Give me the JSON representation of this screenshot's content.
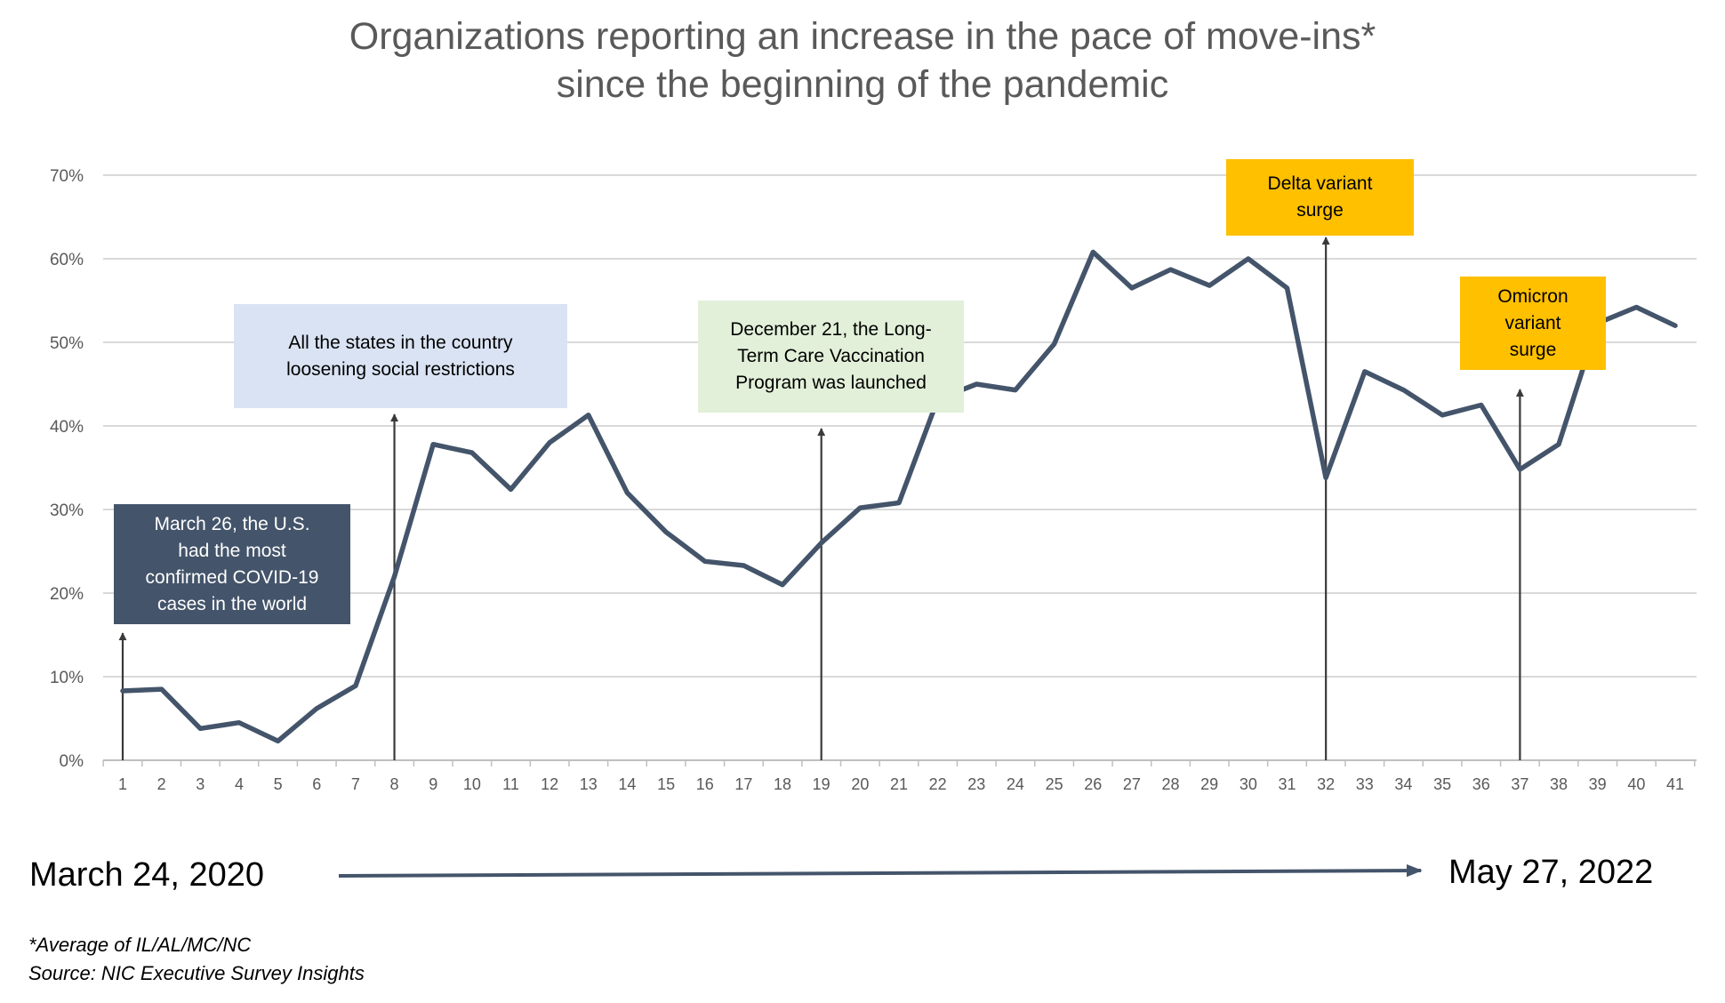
{
  "colors": {
    "line": "#44546a",
    "grid": "#d9d9d9",
    "axis": "#bfbfbf",
    "navy": "#44546a",
    "light_blue": "#dae3f3",
    "light_green": "#e2f0d9",
    "amber": "#ffc000"
  },
  "chart_data": {
    "type": "line",
    "title": "Organizations reporting an increase in the pace of move-ins* since the beginning of the pandemic",
    "title_lines": [
      "Organizations reporting an increase in the pace of move-ins*",
      "since the beginning of the pandemic"
    ],
    "xlabel": "",
    "ylabel": "",
    "ylim": [
      0,
      70
    ],
    "yticks": [
      0,
      10,
      20,
      30,
      40,
      50,
      60,
      70
    ],
    "ytick_labels": [
      "0%",
      "10%",
      "20%",
      "30%",
      "40%",
      "50%",
      "60%",
      "70%"
    ],
    "x": [
      1,
      2,
      3,
      4,
      5,
      6,
      7,
      8,
      9,
      10,
      11,
      12,
      13,
      14,
      15,
      16,
      17,
      18,
      19,
      20,
      21,
      22,
      23,
      24,
      25,
      26,
      27,
      28,
      29,
      30,
      31,
      32,
      33,
      34,
      35,
      36,
      37,
      38,
      39,
      40,
      41
    ],
    "x_labels": [
      "1",
      "2",
      "3",
      "4",
      "5",
      "6",
      "7",
      "8",
      "9",
      "10",
      "11",
      "12",
      "13",
      "14",
      "15",
      "16",
      "17",
      "18",
      "19",
      "20",
      "21",
      "22",
      "23",
      "24",
      "25",
      "26",
      "27",
      "28",
      "29",
      "30",
      "31",
      "32",
      "33",
      "34",
      "35",
      "36",
      "37",
      "38",
      "39",
      "40",
      "41"
    ],
    "series": [
      {
        "name": "Increase in pace of move-ins",
        "values": [
          8.3,
          8.5,
          3.8,
          4.5,
          2.3,
          6.2,
          8.9,
          22,
          37.8,
          36.8,
          32.4,
          38,
          41.3,
          32,
          27.3,
          23.8,
          23.3,
          21,
          26,
          30.2,
          30.8,
          43.2,
          45,
          44.3,
          49.8,
          60.8,
          56.5,
          58.7,
          56.8,
          60,
          56.5,
          33.8,
          46.5,
          44.3,
          41.3,
          42.5,
          34.8,
          37.8,
          52.3,
          54.2,
          52
        ]
      }
    ],
    "grid": true,
    "legend": "none",
    "annotations": [
      {
        "x": 1,
        "text": "March 26, the U.S. had the most confirmed COVID-19 cases in the world"
      },
      {
        "x": 8,
        "text": "All the states in the country loosening social restrictions"
      },
      {
        "x": 19,
        "text": "December 21, the Long-Term Care Vaccination Program was launched"
      },
      {
        "x": 32,
        "text": "Delta variant surge"
      },
      {
        "x": 37,
        "text": "Omicron variant surge"
      }
    ]
  },
  "callouts": {
    "march26": "March 26, the U.S.\nhad the most\nconfirmed COVID-19\ncases in the world",
    "states": "All the states in the country\nloosening social restrictions",
    "december21": "December 21, the Long-\nTerm Care Vaccination\nProgram was launched",
    "delta": "Delta variant\nsurge",
    "omicron": "Omicron\nvariant\nsurge"
  },
  "timeline": {
    "start": "March 24, 2020",
    "end": "May 27, 2022"
  },
  "footnotes": {
    "note": "*Average of IL/AL/MC/NC",
    "source": "Source: NIC Executive Survey Insights"
  }
}
